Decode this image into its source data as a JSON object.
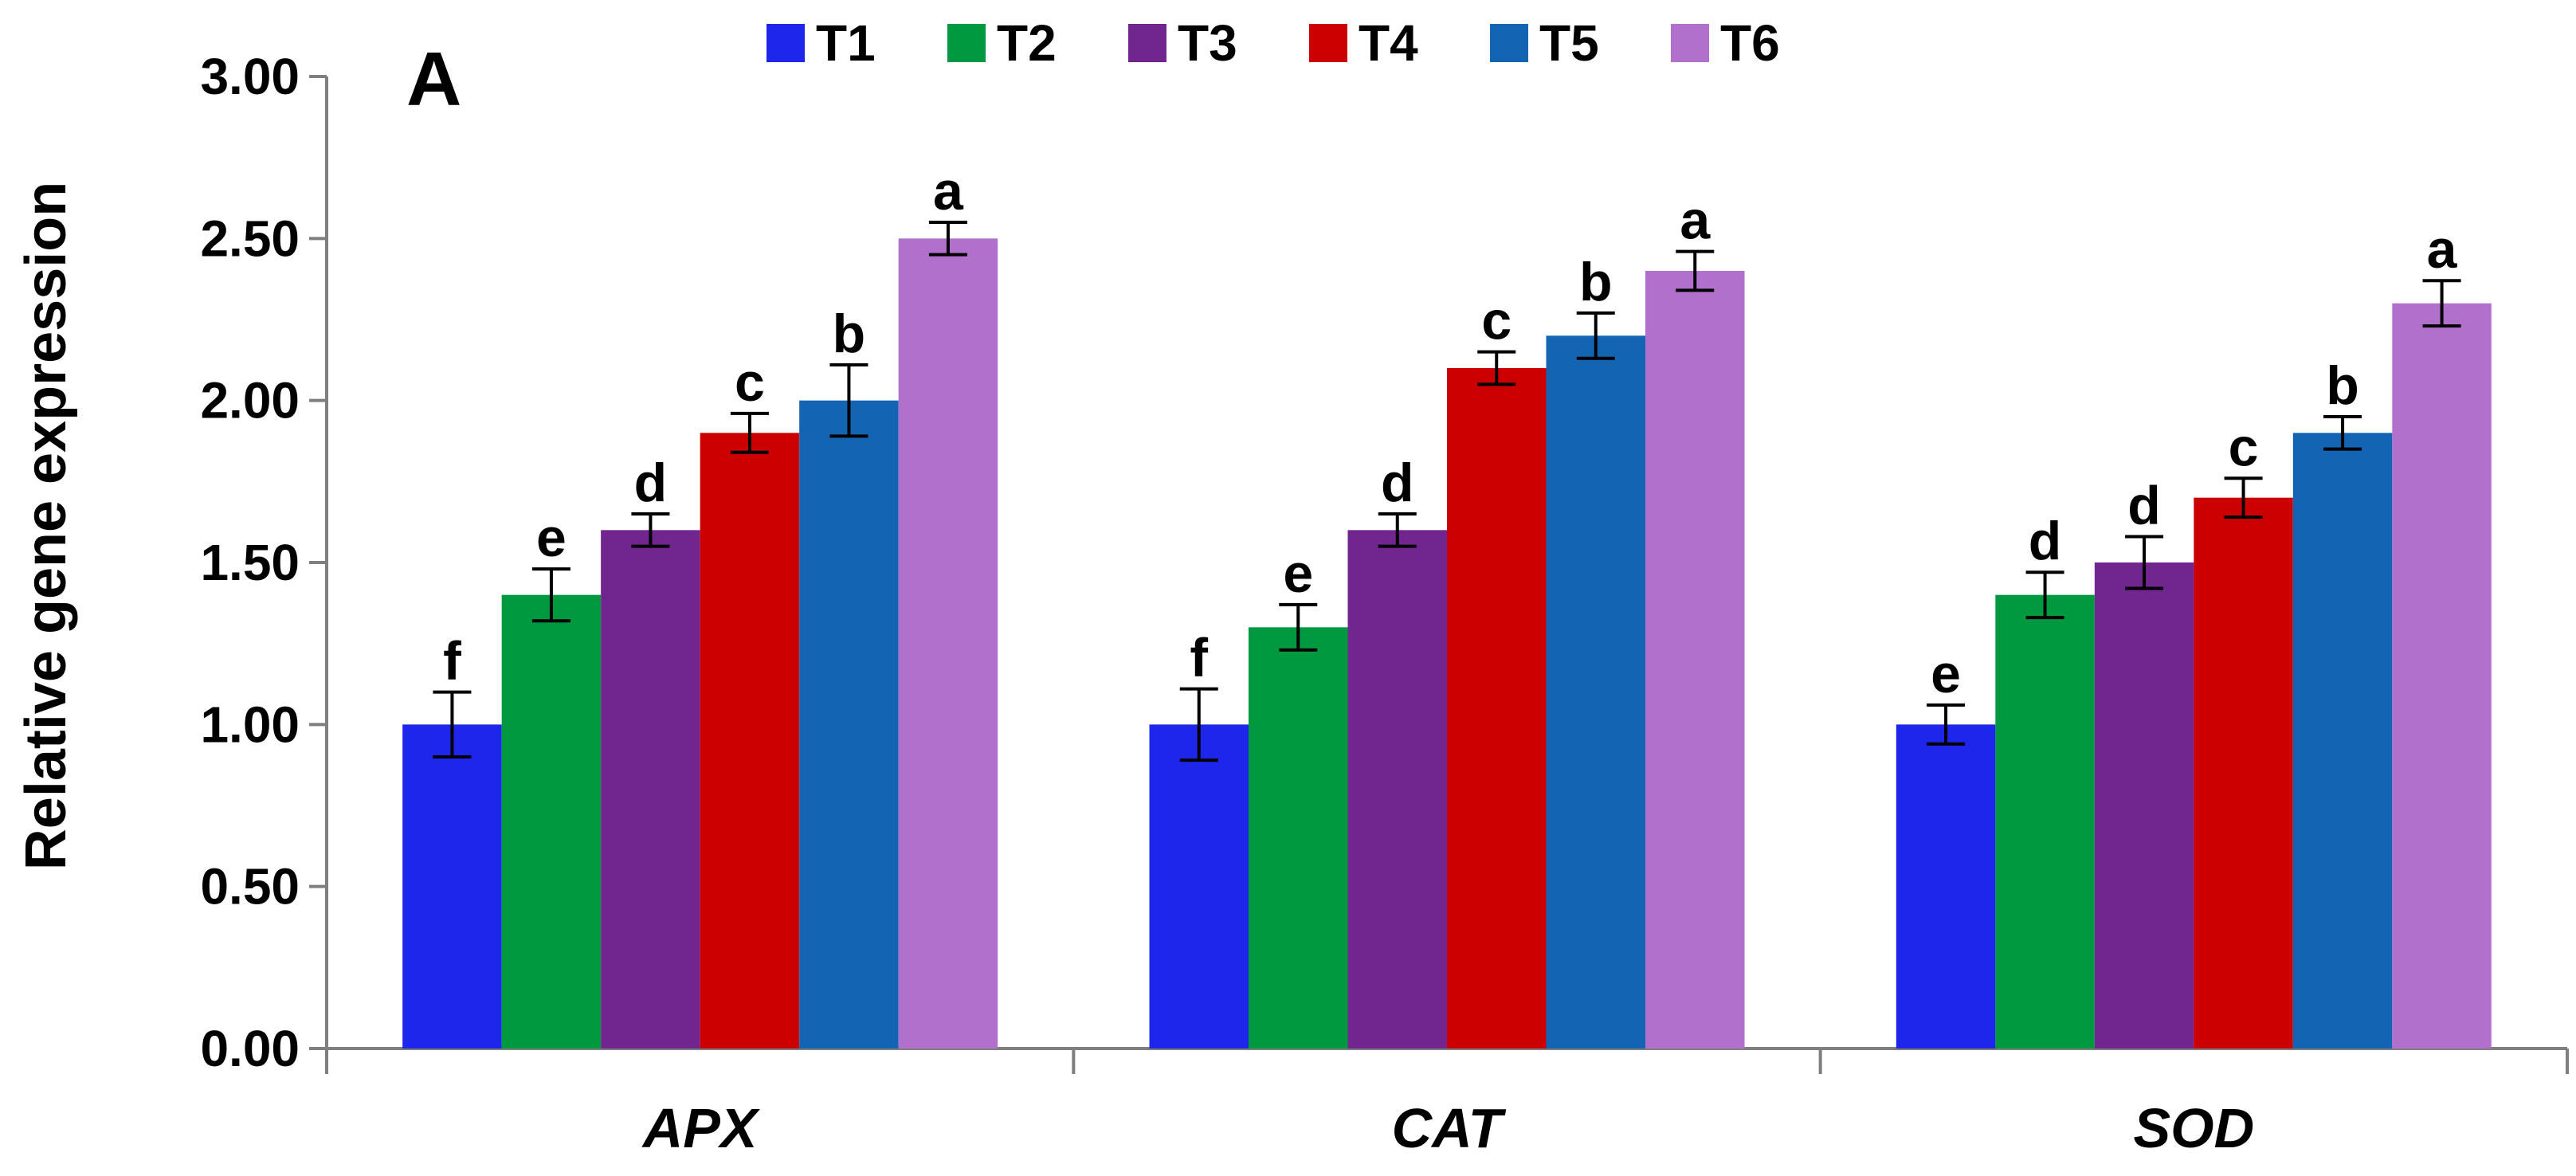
{
  "chart_data": {
    "type": "bar",
    "panel_label": "A",
    "ylabel": "Relative gene expression",
    "xlabel": "",
    "ylim": [
      0,
      3
    ],
    "yticks": [
      "0.00",
      "0.50",
      "1.00",
      "1.50",
      "2.00",
      "2.50",
      "3.00"
    ],
    "grid": false,
    "legend_position": "top",
    "categories": [
      "APX",
      "CAT",
      "SOD"
    ],
    "series": [
      {
        "name": "T1",
        "color": "#1F26EB",
        "values": [
          1.0,
          1.0,
          1.0
        ],
        "errors": [
          0.1,
          0.11,
          0.06
        ],
        "letters": [
          "f",
          "f",
          "e"
        ]
      },
      {
        "name": "T2",
        "color": "#00993F",
        "values": [
          1.4,
          1.3,
          1.4
        ],
        "errors": [
          0.08,
          0.07,
          0.07
        ],
        "letters": [
          "e",
          "e",
          "d"
        ]
      },
      {
        "name": "T3",
        "color": "#71258E",
        "values": [
          1.6,
          1.6,
          1.5
        ],
        "errors": [
          0.05,
          0.05,
          0.08
        ],
        "letters": [
          "d",
          "d",
          "d"
        ]
      },
      {
        "name": "T4",
        "color": "#CC0000",
        "values": [
          1.9,
          2.1,
          1.7
        ],
        "errors": [
          0.06,
          0.05,
          0.06
        ],
        "letters": [
          "c",
          "c",
          "c"
        ]
      },
      {
        "name": "T5",
        "color": "#1464B4",
        "values": [
          2.0,
          2.2,
          1.9
        ],
        "errors": [
          0.11,
          0.07,
          0.05
        ],
        "letters": [
          "b",
          "b",
          "b"
        ]
      },
      {
        "name": "T6",
        "color": "#B070CC",
        "values": [
          2.5,
          2.4,
          2.3
        ],
        "errors": [
          0.05,
          0.06,
          0.07
        ],
        "letters": [
          "a",
          "a",
          "a"
        ]
      }
    ]
  }
}
